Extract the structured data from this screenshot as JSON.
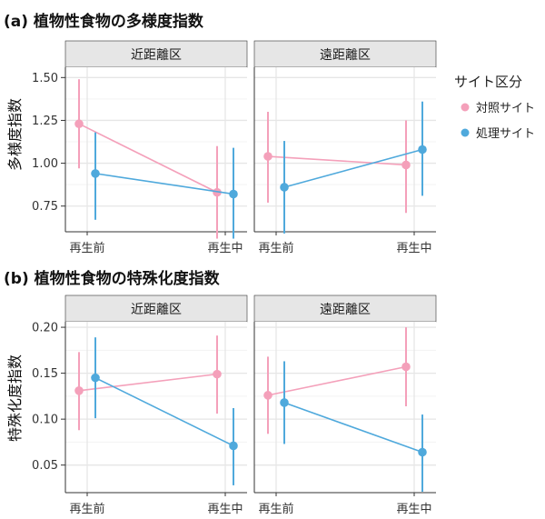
{
  "colors": {
    "control": "#f4a0ba",
    "treated": "#4fa9dc",
    "strip_bg": "#e6e6e6",
    "grid": "#ebebeb"
  },
  "legend": {
    "title": "サイト区分",
    "items": [
      {
        "label": "対照サイト",
        "color": "#f4a0ba"
      },
      {
        "label": "処理サイト",
        "color": "#4fa9dc"
      }
    ]
  },
  "chart_data": [
    {
      "type": "line",
      "title": "(a) 植物性食物の多様度指数",
      "ylabel": "多様度指数",
      "categories": [
        "再生前",
        "再生中"
      ],
      "ylim": [
        0.6,
        1.56
      ],
      "yticks": [
        0.75,
        1.0,
        1.25,
        1.5
      ],
      "ytick_labels": [
        "0.75",
        "1.00",
        "1.25",
        "1.50"
      ],
      "facets": [
        {
          "label": "近距離区",
          "series": [
            {
              "name": "対照サイト",
              "values": [
                1.23,
                0.83
              ],
              "lower": [
                0.97,
                0.56
              ],
              "upper": [
                1.49,
                1.1
              ]
            },
            {
              "name": "処理サイト",
              "values": [
                0.94,
                0.82
              ],
              "lower": [
                0.67,
                0.56
              ],
              "upper": [
                1.18,
                1.09
              ]
            }
          ]
        },
        {
          "label": "遠距離区",
          "series": [
            {
              "name": "対照サイト",
              "values": [
                1.04,
                0.99
              ],
              "lower": [
                0.77,
                0.71
              ],
              "upper": [
                1.3,
                1.25
              ]
            },
            {
              "name": "処理サイト",
              "values": [
                0.86,
                1.08
              ],
              "lower": [
                0.59,
                0.81
              ],
              "upper": [
                1.13,
                1.36
              ]
            }
          ]
        }
      ]
    },
    {
      "type": "line",
      "title": "(b) 植物性食物の特殊化度指数",
      "ylabel": "特殊化度指数",
      "categories": [
        "再生前",
        "再生中"
      ],
      "ylim": [
        0.02,
        0.206
      ],
      "yticks": [
        0.05,
        0.1,
        0.15,
        0.2
      ],
      "ytick_labels": [
        "0.05",
        "0.10",
        "0.15",
        "0.20"
      ],
      "facets": [
        {
          "label": "近距離区",
          "series": [
            {
              "name": "対照サイト",
              "values": [
                0.131,
                0.149
              ],
              "lower": [
                0.088,
                0.106
              ],
              "upper": [
                0.173,
                0.191
              ]
            },
            {
              "name": "処理サイト",
              "values": [
                0.145,
                0.071
              ],
              "lower": [
                0.101,
                0.028
              ],
              "upper": [
                0.189,
                0.112
              ]
            }
          ]
        },
        {
          "label": "遠距離区",
          "series": [
            {
              "name": "対照サイト",
              "values": [
                0.126,
                0.157
              ],
              "lower": [
                0.084,
                0.114
              ],
              "upper": [
                0.168,
                0.2
              ]
            },
            {
              "name": "処理サイト",
              "values": [
                0.118,
                0.064
              ],
              "lower": [
                0.073,
                0.021
              ],
              "upper": [
                0.163,
                0.105
              ]
            }
          ]
        }
      ]
    }
  ]
}
